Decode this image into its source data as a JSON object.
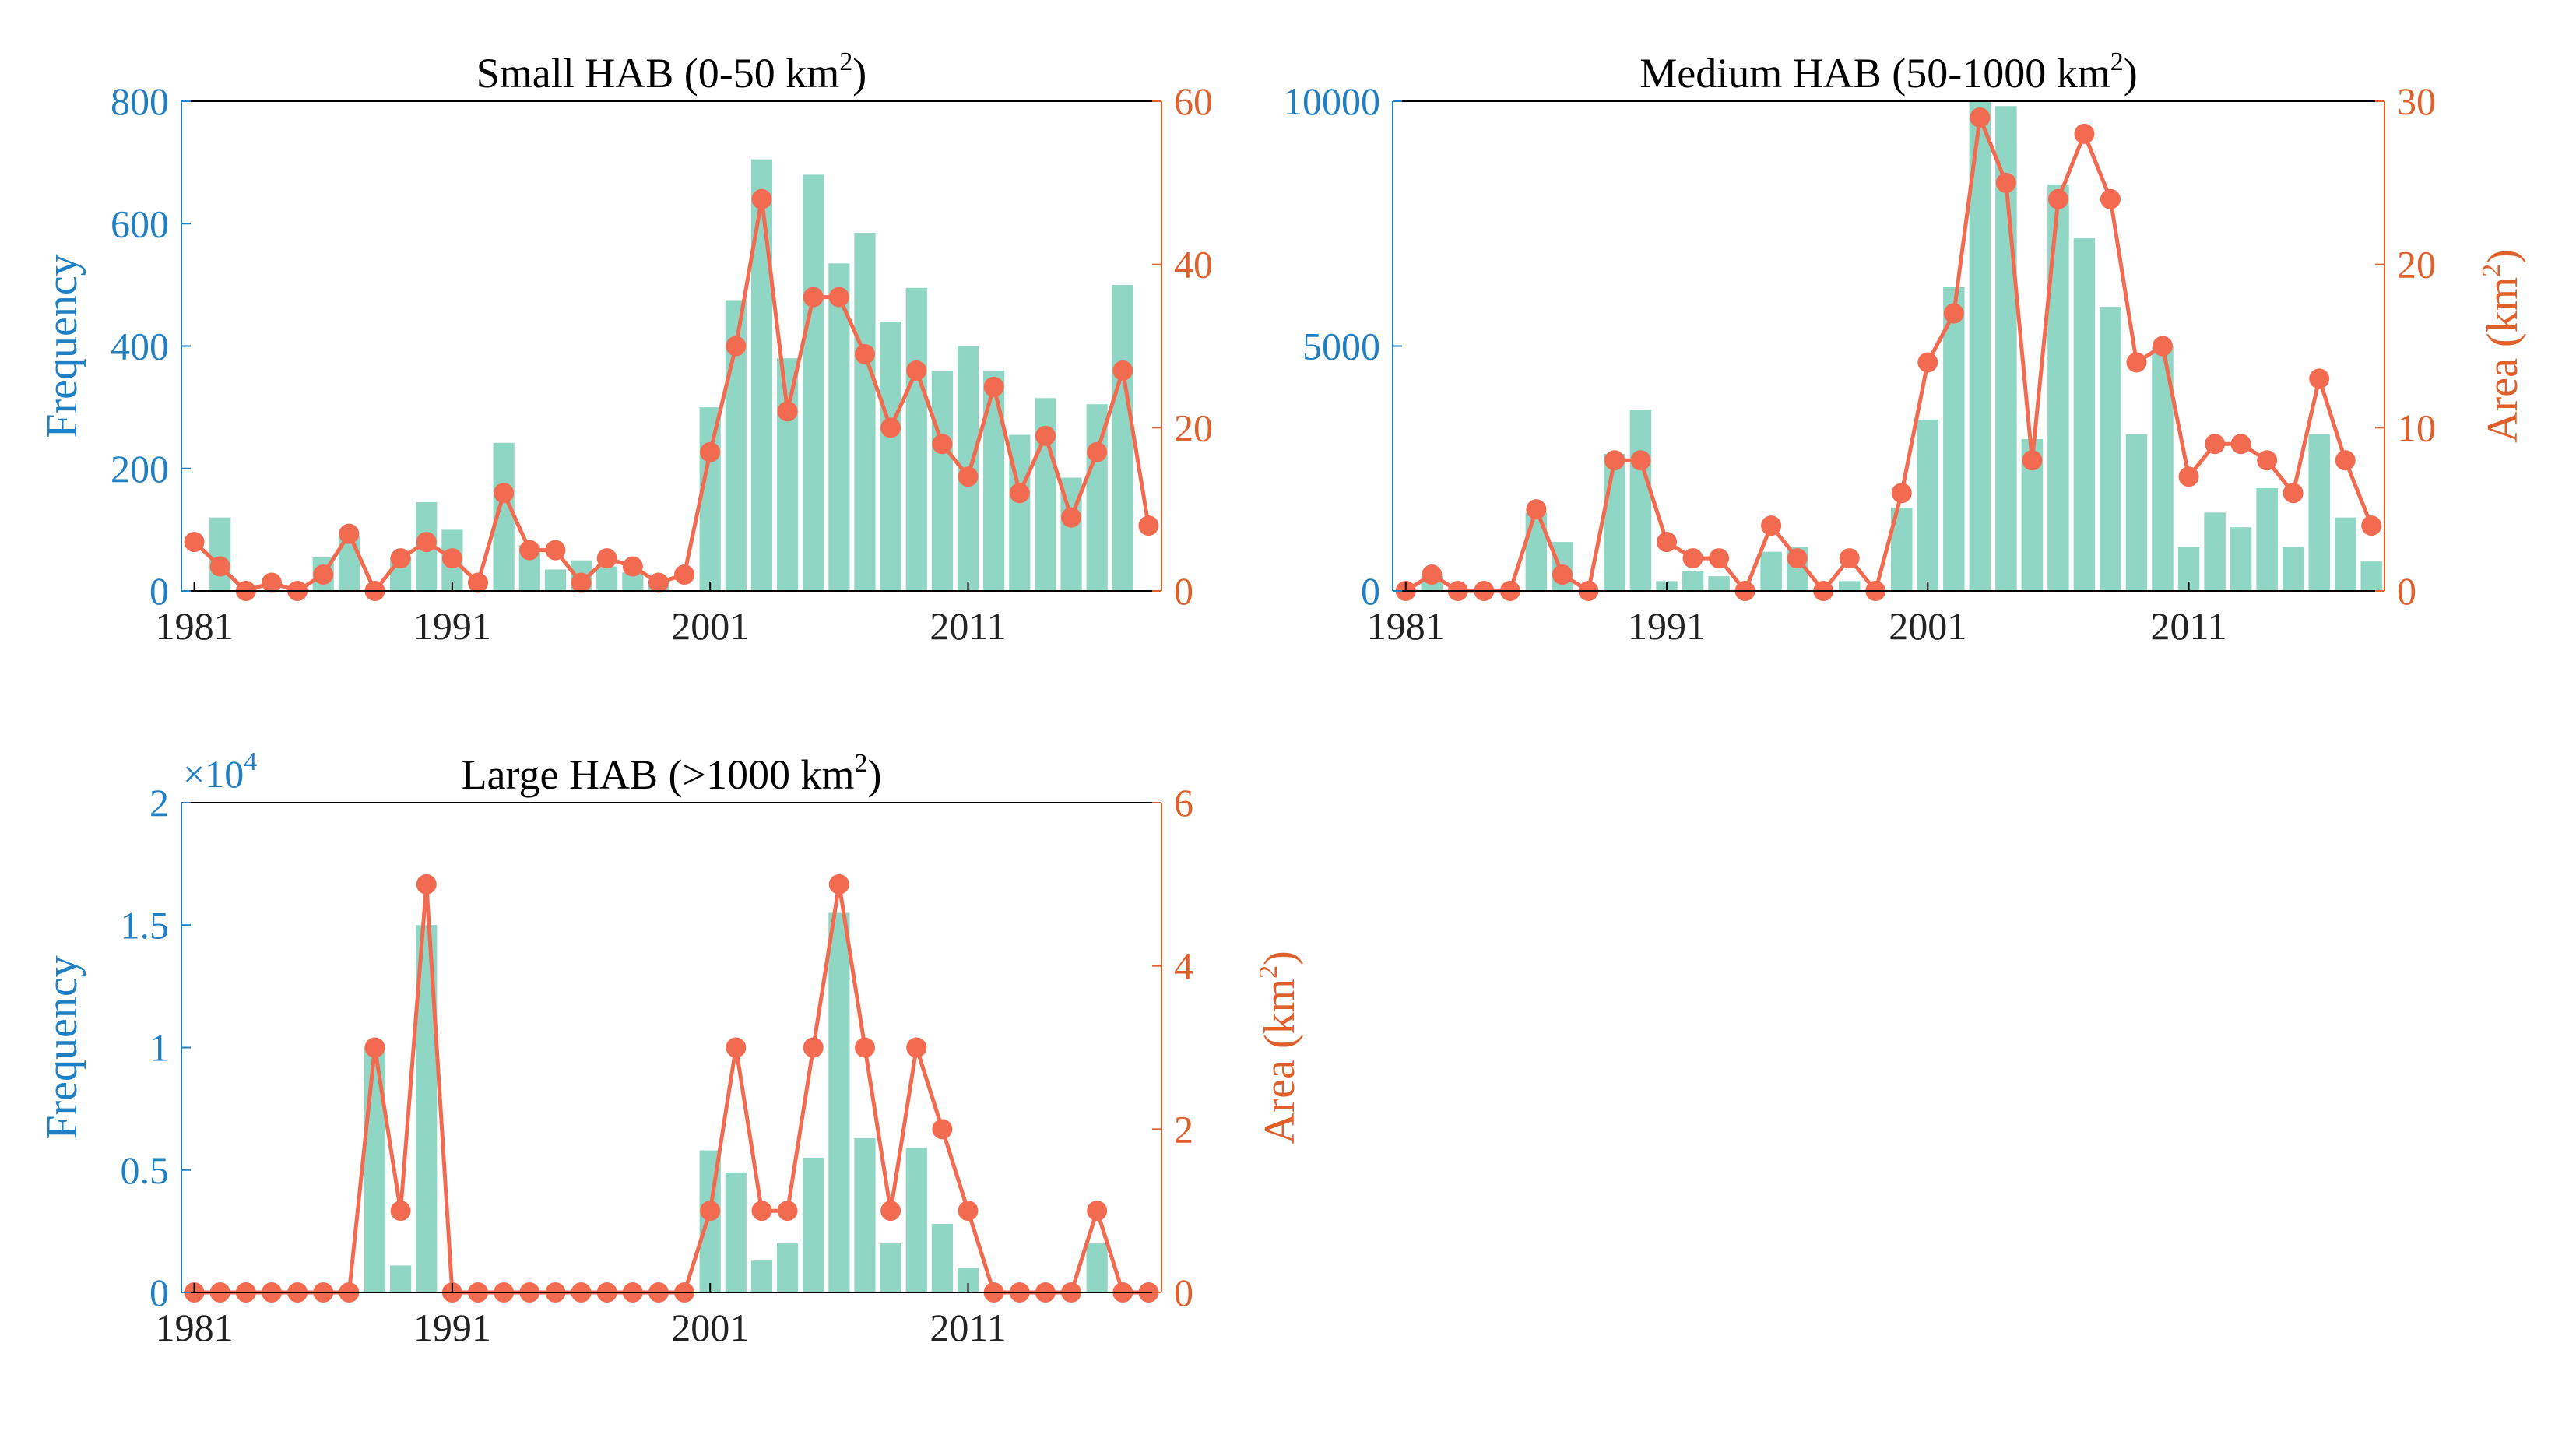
{
  "colors": {
    "bar": "#8fd6c4",
    "line": "#f26b50",
    "left_axis": "#1f7fc2",
    "right_axis": "#e0602b",
    "frame": "#000000"
  },
  "chart_data": [
    {
      "type": "bar",
      "title": "Small HAB (0-50 km",
      "title_sup": "2",
      "title_tail": ")",
      "ylabel": "Frequency",
      "ylabel2": "",
      "ylabel2_sup": "",
      "ylabel2_tail": "",
      "xlim": [
        1981,
        2018
      ],
      "ylim": [
        0,
        800
      ],
      "y2lim": [
        0,
        60
      ],
      "xticks": [
        "1981",
        "1991",
        "2001",
        "2011"
      ],
      "yticks": [
        "0",
        "200",
        "400",
        "600",
        "800"
      ],
      "y2ticks": [
        "0",
        "20",
        "40",
        "60"
      ],
      "exponent": "",
      "exponent_sup": "",
      "years": [
        1981,
        1982,
        1983,
        1984,
        1985,
        1986,
        1987,
        1988,
        1989,
        1990,
        1991,
        1992,
        1993,
        1994,
        1995,
        1996,
        1997,
        1998,
        1999,
        2000,
        2001,
        2002,
        2003,
        2004,
        2005,
        2006,
        2007,
        2008,
        2009,
        2010,
        2011,
        2012,
        2013,
        2014,
        2015,
        2016,
        2017,
        2018
      ],
      "series": [
        {
          "name": "Frequency",
          "axis": "left",
          "kind": "bar",
          "values": [
            0,
            120,
            0,
            0,
            0,
            55,
            90,
            0,
            55,
            145,
            100,
            0,
            242,
            75,
            35,
            50,
            40,
            30,
            10,
            0,
            300,
            475,
            705,
            380,
            680,
            535,
            585,
            440,
            495,
            360,
            400,
            360,
            255,
            315,
            185,
            305,
            500,
            0
          ]
        },
        {
          "name": "Area",
          "axis": "right",
          "kind": "line",
          "values": [
            6,
            3,
            0,
            1,
            0,
            2,
            7,
            0,
            4,
            6,
            4,
            1,
            12,
            5,
            5,
            1,
            4,
            3,
            1,
            2,
            17,
            30,
            48,
            22,
            36,
            36,
            29,
            20,
            27,
            18,
            14,
            25,
            12,
            19,
            9,
            17,
            27,
            8
          ]
        }
      ]
    },
    {
      "type": "bar",
      "title": "Medium HAB (50-1000 km",
      "title_sup": "2",
      "title_tail": ")",
      "ylabel": "",
      "ylabel2": "Area (km",
      "ylabel2_sup": "2",
      "ylabel2_tail": ")",
      "xlim": [
        1981,
        2018
      ],
      "ylim": [
        0,
        10000
      ],
      "y2lim": [
        0,
        30
      ],
      "xticks": [
        "1981",
        "1991",
        "2001",
        "2011"
      ],
      "yticks": [
        "0",
        "5000",
        "10000"
      ],
      "y2ticks": [
        "0",
        "10",
        "20",
        "30"
      ],
      "exponent": "",
      "exponent_sup": "",
      "years": [
        1981,
        1982,
        1983,
        1984,
        1985,
        1986,
        1987,
        1988,
        1989,
        1990,
        1991,
        1992,
        1993,
        1994,
        1995,
        1996,
        1997,
        1998,
        1999,
        2000,
        2001,
        2002,
        2003,
        2004,
        2005,
        2006,
        2007,
        2008,
        2009,
        2010,
        2011,
        2012,
        2013,
        2014,
        2015,
        2016,
        2017,
        2018
      ],
      "series": [
        {
          "name": "Frequency",
          "axis": "left",
          "kind": "bar",
          "values": [
            0,
            300,
            0,
            0,
            0,
            1600,
            1000,
            0,
            2800,
            3700,
            200,
            400,
            300,
            0,
            800,
            900,
            0,
            200,
            0,
            1700,
            3500,
            6200,
            10000,
            9900,
            3100,
            8300,
            7200,
            5800,
            3200,
            5000,
            900,
            1600,
            1300,
            2100,
            900,
            3200,
            1500,
            600
          ]
        },
        {
          "name": "Area",
          "axis": "right",
          "kind": "line",
          "values": [
            0,
            1,
            0,
            0,
            0,
            5,
            1,
            0,
            8,
            8,
            3,
            2,
            2,
            0,
            4,
            2,
            0,
            2,
            0,
            6,
            14,
            17,
            29,
            25,
            8,
            24,
            28,
            24,
            14,
            15,
            7,
            9,
            9,
            8,
            6,
            13,
            8,
            4
          ]
        }
      ]
    },
    {
      "type": "bar",
      "title": "Large HAB (>1000 km",
      "title_sup": "2",
      "title_tail": ")",
      "ylabel": "Frequency",
      "ylabel2": "Area (km",
      "ylabel2_sup": "2",
      "ylabel2_tail": ")",
      "xlim": [
        1981,
        2018
      ],
      "ylim": [
        0,
        2
      ],
      "y2lim": [
        0,
        6
      ],
      "xticks": [
        "1981",
        "1991",
        "2001",
        "2011"
      ],
      "yticks": [
        "0",
        "0.5",
        "1",
        "1.5",
        "2"
      ],
      "y2ticks": [
        "0",
        "2",
        "4",
        "6"
      ],
      "exponent": "×10",
      "exponent_sup": "4",
      "years": [
        1981,
        1982,
        1983,
        1984,
        1985,
        1986,
        1987,
        1988,
        1989,
        1990,
        1991,
        1992,
        1993,
        1994,
        1995,
        1996,
        1997,
        1998,
        1999,
        2000,
        2001,
        2002,
        2003,
        2004,
        2005,
        2006,
        2007,
        2008,
        2009,
        2010,
        2011,
        2012,
        2013,
        2014,
        2015,
        2016,
        2017,
        2018
      ],
      "series": [
        {
          "name": "Frequency",
          "axis": "left",
          "kind": "bar",
          "values": [
            0,
            0,
            0,
            0,
            0,
            0,
            0,
            1,
            0.11,
            1.5,
            0,
            0,
            0,
            0,
            0,
            0,
            0,
            0,
            0,
            0,
            0.58,
            0.49,
            0.13,
            0.2,
            0.55,
            1.55,
            0.63,
            0.2,
            0.59,
            0.28,
            0.1,
            0,
            0,
            0,
            0,
            0.2,
            0,
            0
          ]
        },
        {
          "name": "Area",
          "axis": "right",
          "kind": "line",
          "values": [
            0,
            0,
            0,
            0,
            0,
            0,
            0,
            3,
            1,
            5,
            0,
            0,
            0,
            0,
            0,
            0,
            0,
            0,
            0,
            0,
            1,
            3,
            1,
            1,
            3,
            5,
            3,
            1,
            3,
            2,
            1,
            0,
            0,
            0,
            0,
            1,
            0,
            0
          ]
        }
      ]
    }
  ]
}
